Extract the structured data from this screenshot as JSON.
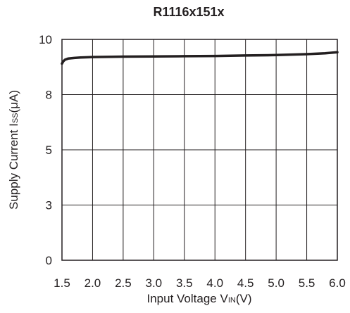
{
  "chart_data": {
    "type": "line",
    "title": "R1116x151x",
    "xlabel": "Input Voltage VIN(V)",
    "ylabel": "Supply Current Iss(μA)",
    "xlim": [
      1.5,
      6.0
    ],
    "ylim": [
      0,
      10
    ],
    "x_ticks": [
      "1.5",
      "2.0",
      "2.5",
      "3.0",
      "3.5",
      "4.0",
      "4.5",
      "5.0",
      "5.5",
      "6.0"
    ],
    "y_ticks": [
      "0",
      "3",
      "5",
      "8",
      "10"
    ],
    "y_tick_values": [
      0,
      2.5,
      5,
      7.5,
      10
    ],
    "grid": true,
    "legend": "none",
    "series": [
      {
        "color": "#231f20",
        "x": [
          1.5,
          1.52,
          1.55,
          1.6,
          1.7,
          1.8,
          2.0,
          2.5,
          3.0,
          3.5,
          4.0,
          4.5,
          5.0,
          5.5,
          5.8,
          6.0
        ],
        "y": [
          8.9,
          9.0,
          9.08,
          9.13,
          9.16,
          9.18,
          9.2,
          9.22,
          9.23,
          9.24,
          9.25,
          9.27,
          9.29,
          9.33,
          9.37,
          9.42
        ]
      }
    ]
  }
}
